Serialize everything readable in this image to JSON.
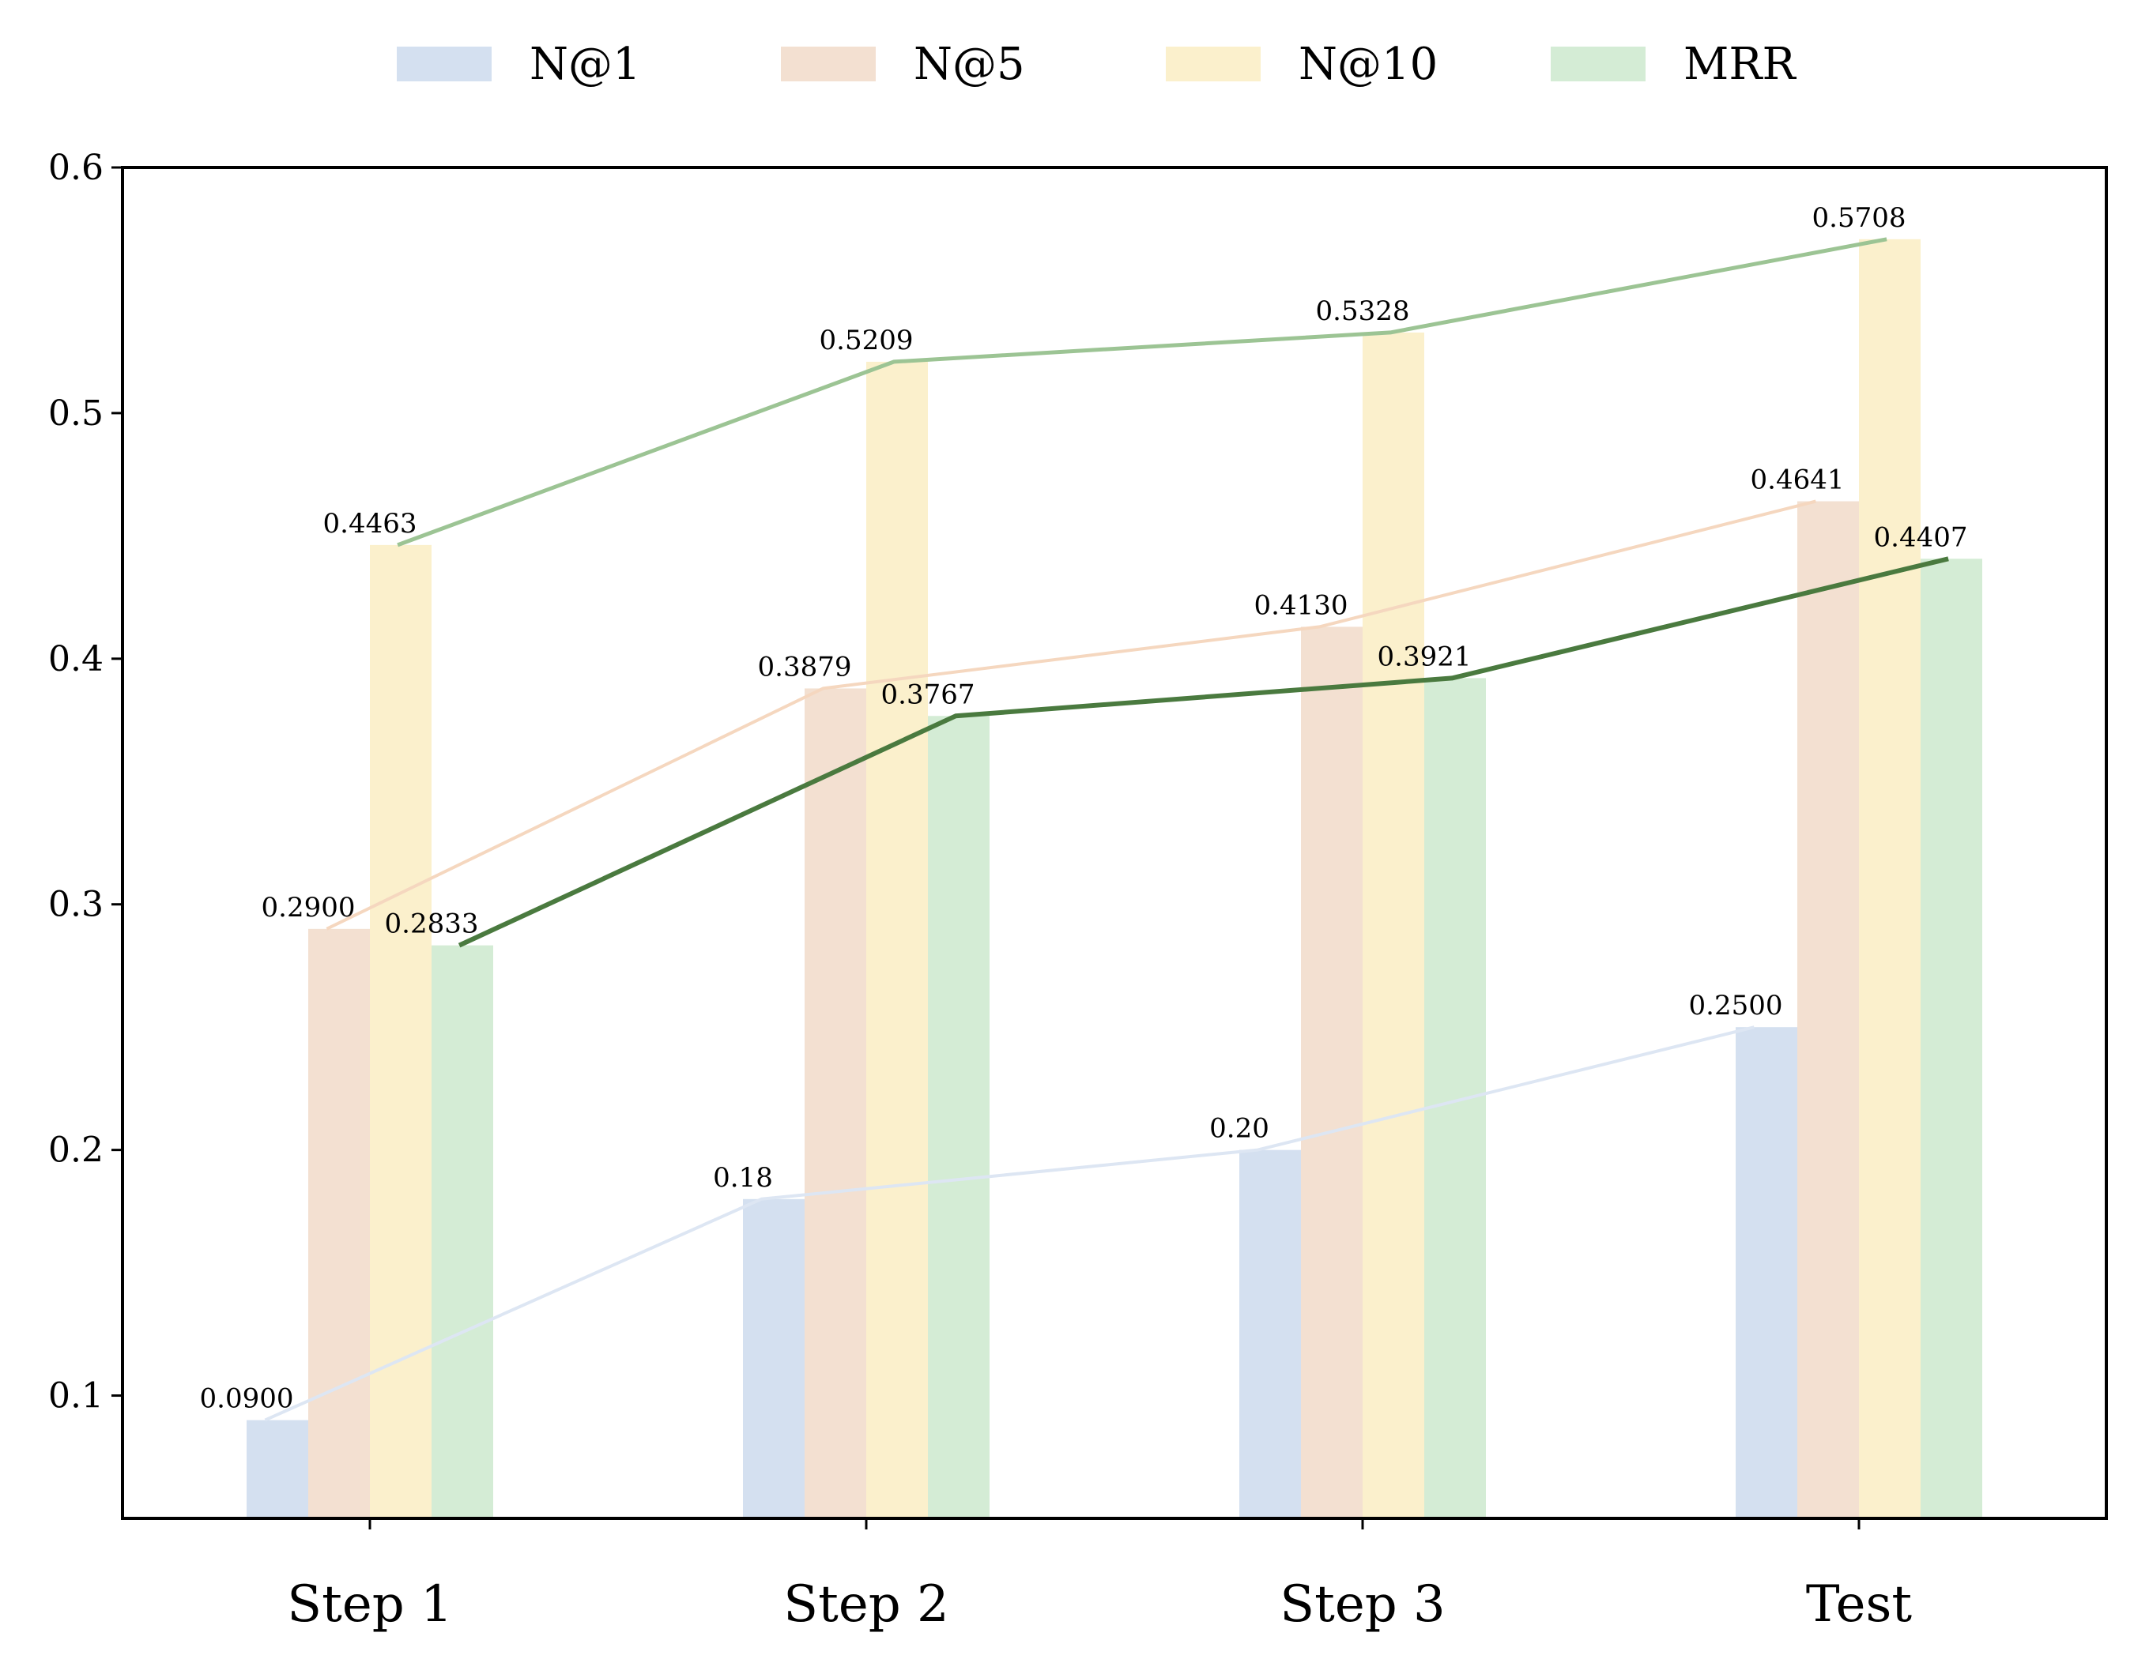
{
  "chart_data": {
    "type": "bar",
    "title": "",
    "xlabel": "",
    "ylabel": "",
    "categories": [
      "Step 1",
      "Step 2",
      "Step 3",
      "Test"
    ],
    "ylim": [
      0.05,
      0.6
    ],
    "yticks": [
      "0.1",
      "0.2",
      "0.3",
      "0.4",
      "0.5",
      "0.6"
    ],
    "grid": false,
    "legend_position": "top-center",
    "series": [
      {
        "name": "N@1",
        "values": [
          0.09,
          0.18,
          0.2,
          0.25
        ],
        "labels": [
          "0.0900",
          "0.18",
          "0.20",
          "0.2500"
        ],
        "bar_color": "#d4e0f0",
        "line_color": "#dde6f3"
      },
      {
        "name": "N@5",
        "values": [
          0.29,
          0.3879,
          0.413,
          0.4641
        ],
        "labels": [
          "0.2900",
          "0.3879",
          "0.4130",
          "0.4641"
        ],
        "bar_color": "#f3e0d1",
        "line_color": "#f5d7bf"
      },
      {
        "name": "N@10",
        "values": [
          0.4463,
          0.5209,
          0.5328,
          0.5708
        ],
        "labels": [
          "0.4463",
          "0.5209",
          "0.5328",
          "0.5708"
        ],
        "bar_color": "#fbf0cc",
        "line_color": "#9cc494"
      },
      {
        "name": "MRR",
        "values": [
          0.2833,
          0.3767,
          0.3921,
          0.4407
        ],
        "labels": [
          "0.2833",
          "0.3767",
          "0.3921",
          "0.4407"
        ],
        "bar_color": "#d4ecd5",
        "line_color": "#4a7a3f"
      }
    ]
  }
}
